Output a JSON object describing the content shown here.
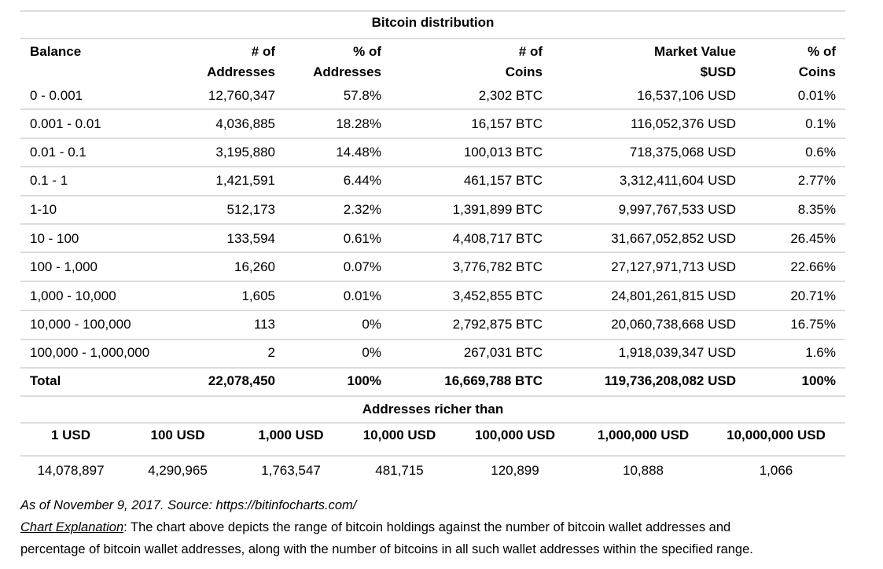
{
  "title": "Bitcoin distribution",
  "columns": {
    "balance": "Balance",
    "addresses": [
      "# of",
      "Addresses"
    ],
    "pct_addresses": [
      "% of",
      "Addresses"
    ],
    "coins": [
      "# of",
      "Coins"
    ],
    "market_value": [
      "Market Value",
      "$USD"
    ],
    "pct_coins": [
      "% of",
      "Coins"
    ]
  },
  "rows": [
    {
      "balance": "0 - 0.001",
      "addresses": "12,760,347",
      "pct_addresses": "57.8%",
      "coins": "2,302 BTC",
      "market_value": "16,537,106 USD",
      "pct_coins": "0.01%"
    },
    {
      "balance": "0.001 - 0.01",
      "addresses": "4,036,885",
      "pct_addresses": "18.28%",
      "coins": "16,157 BTC",
      "market_value": "116,052,376 USD",
      "pct_coins": "0.1%"
    },
    {
      "balance": "0.01 - 0.1",
      "addresses": "3,195,880",
      "pct_addresses": "14.48%",
      "coins": "100,013 BTC",
      "market_value": "718,375,068 USD",
      "pct_coins": "0.6%"
    },
    {
      "balance": "0.1 - 1",
      "addresses": "1,421,591",
      "pct_addresses": "6.44%",
      "coins": "461,157 BTC",
      "market_value": "3,312,411,604 USD",
      "pct_coins": "2.77%"
    },
    {
      "balance": "1-10",
      "addresses": "512,173",
      "pct_addresses": "2.32%",
      "coins": "1,391,899 BTC",
      "market_value": "9,997,767,533 USD",
      "pct_coins": "8.35%"
    },
    {
      "balance": "10 - 100",
      "addresses": "133,594",
      "pct_addresses": "0.61%",
      "coins": "4,408,717 BTC",
      "market_value": "31,667,052,852 USD",
      "pct_coins": "26.45%"
    },
    {
      "balance": "100 - 1,000",
      "addresses": "16,260",
      "pct_addresses": "0.07%",
      "coins": "3,776,782 BTC",
      "market_value": "27,127,971,713 USD",
      "pct_coins": "22.66%"
    },
    {
      "balance": "1,000 - 10,000",
      "addresses": "1,605",
      "pct_addresses": "0.01%",
      "coins": "3,452,855 BTC",
      "market_value": "24,801,261,815 USD",
      "pct_coins": "20.71%"
    },
    {
      "balance": "10,000 - 100,000",
      "addresses": "113",
      "pct_addresses": "0%",
      "coins": "2,792,875 BTC",
      "market_value": "20,060,738,668 USD",
      "pct_coins": "16.75%"
    },
    {
      "balance": "100,000 - 1,000,000",
      "addresses": "2",
      "pct_addresses": "0%",
      "coins": "267,031 BTC",
      "market_value": "1,918,039,347 USD",
      "pct_coins": "1.6%"
    }
  ],
  "total": {
    "balance": "Total",
    "addresses": "22,078,450",
    "pct_addresses": "100%",
    "coins": "16,669,788 BTC",
    "market_value": "119,736,208,082 USD",
    "pct_coins": "100%"
  },
  "richer": {
    "title": "Addresses richer than",
    "headers": [
      "1 USD",
      "100 USD",
      "1,000 USD",
      "10,000 USD",
      "100,000 USD",
      "1,000,000 USD",
      "10,000,000 USD"
    ],
    "values": [
      "14,078,897",
      "4,290,965",
      "1,763,547",
      "481,715",
      "120,899",
      "10,888",
      "1,066"
    ]
  },
  "notes": {
    "source": "As of November 9, 2017.  Source: https://bitinfocharts.com/",
    "explanation_label": "Chart Explanation",
    "explanation_line1": ": The chart above depicts the range of bitcoin holdings against the number of bitcoin wallet addresses and",
    "explanation_line2": "percentage of bitcoin wallet addresses, along with the number of bitcoins in all such wallet addresses within the specified range."
  }
}
